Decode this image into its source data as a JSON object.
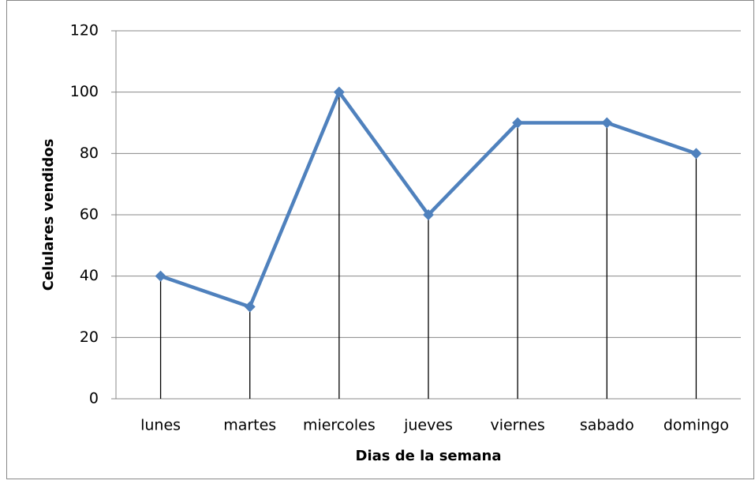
{
  "chart_data": {
    "type": "line",
    "x_label": "Dias de la semana",
    "y_label": "Celulares vendidos",
    "categories": [
      "lunes",
      "martes",
      "miercoles",
      "jueves",
      "viernes",
      "sabado",
      "domingo"
    ],
    "values": [
      40,
      30,
      100,
      60,
      90,
      90,
      80
    ],
    "color": "#4f81bd",
    "marker": "diamond",
    "drop_lines": true,
    "ylim": [
      0,
      120
    ],
    "yticks": [
      0,
      20,
      40,
      60,
      80,
      100,
      120
    ],
    "grid": true
  }
}
